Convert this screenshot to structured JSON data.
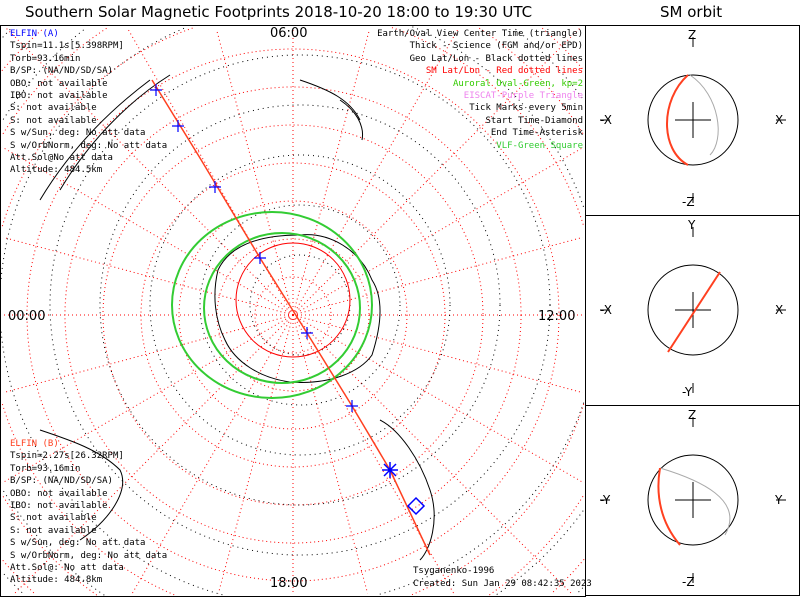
{
  "title": "Southern Solar Magnetic Footprints 2018-10-20 18:00 to 19:30 UTC",
  "orbit_title": "SM orbit",
  "colors": {
    "track": "#ff4020",
    "tick": "#0000ff",
    "oval": "#00cc00",
    "grid_sm": "#ff0000",
    "elfin_a": "#0000ff",
    "elfin_b": "#ff4020"
  },
  "time_labels": {
    "top": "06:00",
    "left": "00:00",
    "right": "12:00",
    "bottom": "18:00"
  },
  "elfin_a": {
    "name": "ELFIN (A)",
    "lines": [
      "Tspin=11.1s[5.398RPM]",
      "Torb=93.16min",
      "B/SP: (NA/ND/SD/SA)",
      "OBO: not available",
      "IBO: not available",
      "S: not available",
      "S: not available",
      "S w/Sun, deg: No att data",
      "S w/OrbNorm, deg: No att data",
      "Att.Sol@No att data",
      "Altitude: 484.5km"
    ]
  },
  "elfin_b": {
    "name": "ELFIN (B)",
    "lines": [
      "Tspin=2.27s[26.32RPM]",
      "Torb=93.16min",
      "B/SP: (NA/ND/SD/SA)",
      "OBO: not available",
      "IBO: not available",
      "S: not available",
      "S: not available",
      "S w/Sun, deg: No att data",
      "S w/OrbNorm, deg: No att data",
      "Att.Sol@: No att data",
      "Altitude: 484.8km"
    ]
  },
  "legend": [
    {
      "text": "Earth/Oval View Center Time (triangle)",
      "color": "#000000"
    },
    {
      "text": "Thick - Science (FGM and/or EPD)",
      "color": "#000000"
    },
    {
      "text": "Geo Lat/Lon - Black dotted lines",
      "color": "#000000"
    },
    {
      "text": "SM Lat/Lon - Red dotted lines",
      "color": "#ff0000"
    },
    {
      "text": "Auroral Oval-Green, kp=2",
      "color": "#33cc00"
    },
    {
      "text": "EISCAT-Purple Triangle",
      "color": "#ee82ee"
    },
    {
      "text": "Tick Marks every 5min",
      "color": "#000000"
    },
    {
      "text": "Start Time-Diamond",
      "color": "#000000"
    },
    {
      "text": "End Time-Asterisk",
      "color": "#000000"
    },
    {
      "text": "VLF-Green Square",
      "color": "#33cc33"
    }
  ],
  "footer": {
    "model": "Tsyganenko-1996",
    "created": "Created: Sun Jan 29 08:42:35 2023"
  },
  "orbit_panels": [
    {
      "top": "Z",
      "bottom": "-Z",
      "left": "-X",
      "right": "X"
    },
    {
      "top": "Y",
      "bottom": "-Y",
      "left": "-X",
      "right": "X"
    },
    {
      "top": "Z",
      "bottom": "-Z",
      "left": "-Y",
      "right": "Y"
    }
  ]
}
